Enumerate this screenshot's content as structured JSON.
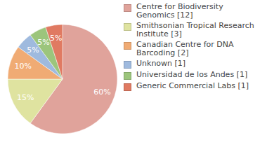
{
  "chart_data": {
    "type": "pie",
    "categories": [
      "Centre for Biodiversity Genomics [12]",
      "Smithsonian Tropical Research Institute [3]",
      "Canadian Centre for DNA Barcoding [2]",
      "Unknown [1]",
      "Universidad de los Andes [1]",
      "Generic Commercial Labs [1]"
    ],
    "values": [
      60,
      15,
      10,
      5,
      5,
      5
    ],
    "value_labels": [
      "60%",
      "15%",
      "10%",
      "5%",
      "5%",
      "5%"
    ],
    "colors": [
      "#e0a39b",
      "#dfe3a0",
      "#f0ab74",
      "#9fbade",
      "#9cc57c",
      "#e07a62"
    ],
    "data_labels": true,
    "legend": "right"
  }
}
